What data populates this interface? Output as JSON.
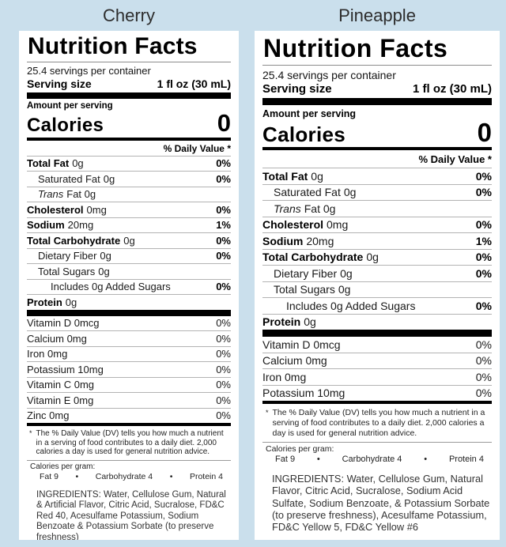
{
  "page": {
    "background_color": "#cadfec",
    "card_color": "#ffffff"
  },
  "bullet": "•",
  "labels": [
    {
      "title": "Cherry",
      "heading": "Nutrition Facts",
      "servings_per_container": "25.4 servings per container",
      "serving_size_label": "Serving size",
      "serving_size_value": "1 fl oz (30 mL)",
      "amount_per_serving": "Amount per serving",
      "calories_label": "Calories",
      "calories_value": "0",
      "daily_value_header": "% Daily Value *",
      "rows": [
        {
          "name": "Total Fat",
          "amount": "0g",
          "dv": "0%"
        },
        {
          "name": "Saturated Fat",
          "amount": "0g",
          "dv": "0%"
        },
        {
          "name": "Trans",
          "amount": "Fat 0g",
          "dv": ""
        },
        {
          "name": "Cholesterol",
          "amount": "0mg",
          "dv": "0%"
        },
        {
          "name": "Sodium",
          "amount": "20mg",
          "dv": "1%"
        },
        {
          "name": "Total Carbohydrate",
          "amount": "0g",
          "dv": "0%"
        },
        {
          "name": "Dietary Fiber",
          "amount": "0g",
          "dv": "0%"
        },
        {
          "name": "Total Sugars",
          "amount": "0g",
          "dv": ""
        },
        {
          "name": "Includes 0g Added Sugars",
          "amount": "",
          "dv": "0%"
        },
        {
          "name": "Protein",
          "amount": "0g",
          "dv": ""
        }
      ],
      "micronutrients": [
        {
          "name": "Vitamin D 0mcg",
          "dv": "0%"
        },
        {
          "name": "Calcium 0mg",
          "dv": "0%"
        },
        {
          "name": "Iron 0mg",
          "dv": "0%"
        },
        {
          "name": "Potassium 10mg",
          "dv": "0%"
        },
        {
          "name": "Vitamin C 0mg",
          "dv": "0%"
        },
        {
          "name": "Vitamin E 0mg",
          "dv": "0%"
        },
        {
          "name": "Zinc 0mg",
          "dv": "0%"
        }
      ],
      "footnote_marker": "*",
      "footnote": "The % Daily Value (DV) tells you how much a nutrient in a serving of food contributes to a daily diet. 2,000 calories a day is used for general nutrition advice.",
      "calories_per_gram_label": "Calories per gram:",
      "calories_per_gram": [
        "Fat 9",
        "Carbohydrate 4",
        "Protein 4"
      ],
      "ingredients": "INGREDIENTS: Water, Cellulose Gum, Natural & Artificial Flavor, Citric Acid, Sucralose, FD&C Red 40, Acesulfame Potassium, Sodium Benzoate & Potassium Sorbate (to preserve freshness)"
    },
    {
      "title": "Pineapple",
      "heading": "Nutrition Facts",
      "servings_per_container": "25.4 servings per container",
      "serving_size_label": "Serving size",
      "serving_size_value": "1 fl oz (30 mL)",
      "amount_per_serving": "Amount per serving",
      "calories_label": "Calories",
      "calories_value": "0",
      "daily_value_header": "% Daily Value *",
      "rows": [
        {
          "name": "Total Fat",
          "amount": "0g",
          "dv": "0%"
        },
        {
          "name": "Saturated Fat",
          "amount": "0g",
          "dv": "0%"
        },
        {
          "name": "Trans",
          "amount": "Fat 0g",
          "dv": ""
        },
        {
          "name": "Cholesterol",
          "amount": "0mg",
          "dv": "0%"
        },
        {
          "name": "Sodium",
          "amount": "20mg",
          "dv": "1%"
        },
        {
          "name": "Total Carbohydrate",
          "amount": "0g",
          "dv": "0%"
        },
        {
          "name": "Dietary Fiber",
          "amount": "0g",
          "dv": "0%"
        },
        {
          "name": "Total Sugars",
          "amount": "0g",
          "dv": ""
        },
        {
          "name": "Includes 0g Added Sugars",
          "amount": "",
          "dv": "0%"
        },
        {
          "name": "Protein",
          "amount": "0g",
          "dv": ""
        }
      ],
      "micronutrients": [
        {
          "name": "Vitamin D 0mcg",
          "dv": "0%"
        },
        {
          "name": "Calcium 0mg",
          "dv": "0%"
        },
        {
          "name": "Iron 0mg",
          "dv": "0%"
        },
        {
          "name": "Potassium 10mg",
          "dv": "0%"
        }
      ],
      "footnote_marker": "*",
      "footnote": "The % Daily Value (DV) tells you how much a nutrient in a serving of food contributes to a daily diet. 2,000 calories a day is used for general nutrition advice.",
      "calories_per_gram_label": "Calories per gram:",
      "calories_per_gram": [
        "Fat 9",
        "Carbohydrate 4",
        "Protein 4"
      ],
      "ingredients": "INGREDIENTS: Water, Cellulose Gum, Natural Flavor, Citric Acid, Sucralose, Sodium Acid Sulfate, Sodium Benzoate, & Potassium Sorbate (to preserve freshness), Acesulfame Potassium, FD&C Yellow 5, FD&C Yellow #6"
    }
  ]
}
